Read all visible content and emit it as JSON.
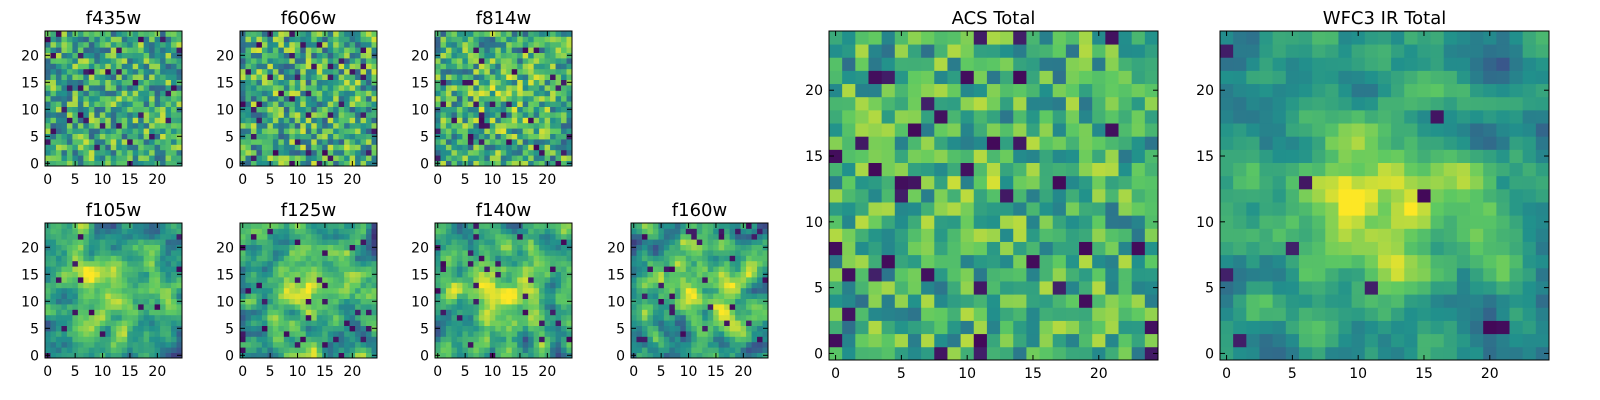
{
  "chart_data": [
    {
      "type": "heatmap",
      "title": "f435w",
      "xticks": [
        "0",
        "5",
        "10",
        "15",
        "20"
      ],
      "yticks": [
        "0",
        "5",
        "10",
        "15",
        "20"
      ],
      "xlim": [
        0,
        25
      ],
      "ylim": [
        0,
        25
      ],
      "grid": false,
      "colormap": "viridis",
      "source_panel": "f435w"
    },
    {
      "type": "heatmap",
      "title": "f606w",
      "xticks": [
        "0",
        "5",
        "10",
        "15",
        "20"
      ],
      "yticks": [
        "0",
        "5",
        "10",
        "15",
        "20"
      ],
      "xlim": [
        0,
        25
      ],
      "ylim": [
        0,
        25
      ],
      "grid": false,
      "colormap": "viridis",
      "source_panel": "f606w"
    },
    {
      "type": "heatmap",
      "title": "f814w",
      "xticks": [
        "0",
        "5",
        "10",
        "15",
        "20"
      ],
      "yticks": [
        "0",
        "5",
        "10",
        "15",
        "20"
      ],
      "xlim": [
        0,
        25
      ],
      "ylim": [
        0,
        25
      ],
      "grid": false,
      "colormap": "viridis",
      "source_panel": "f814w"
    },
    {
      "type": "heatmap",
      "title": "f105w",
      "xticks": [
        "0",
        "5",
        "10",
        "15",
        "20"
      ],
      "yticks": [
        "0",
        "5",
        "10",
        "15",
        "20"
      ],
      "xlim": [
        0,
        25
      ],
      "ylim": [
        0,
        25
      ],
      "grid": false,
      "colormap": "viridis",
      "source_panel": "f105w"
    },
    {
      "type": "heatmap",
      "title": "f125w",
      "xticks": [
        "0",
        "5",
        "10",
        "15",
        "20"
      ],
      "yticks": [
        "0",
        "5",
        "10",
        "15",
        "20"
      ],
      "xlim": [
        0,
        25
      ],
      "ylim": [
        0,
        25
      ],
      "grid": false,
      "colormap": "viridis",
      "source_panel": "f125w"
    },
    {
      "type": "heatmap",
      "title": "f140w",
      "xticks": [
        "0",
        "5",
        "10",
        "15",
        "20"
      ],
      "yticks": [
        "0",
        "5",
        "10",
        "15",
        "20"
      ],
      "xlim": [
        0,
        25
      ],
      "ylim": [
        0,
        25
      ],
      "grid": false,
      "colormap": "viridis",
      "source_panel": "f140w"
    },
    {
      "type": "heatmap",
      "title": "f160w",
      "xticks": [
        "0",
        "5",
        "10",
        "15",
        "20"
      ],
      "yticks": [
        "0",
        "5",
        "10",
        "15",
        "20"
      ],
      "xlim": [
        0,
        25
      ],
      "ylim": [
        0,
        25
      ],
      "grid": false,
      "colormap": "viridis",
      "source_panel": "f160w"
    },
    {
      "type": "heatmap",
      "title": "ACS Total",
      "xticks": [
        "0",
        "5",
        "10",
        "15",
        "20"
      ],
      "yticks": [
        "0",
        "5",
        "10",
        "15",
        "20"
      ],
      "xlim": [
        0,
        25
      ],
      "ylim": [
        0,
        25
      ],
      "grid": false,
      "colormap": "viridis",
      "source_panel": "ACS Total"
    },
    {
      "type": "heatmap",
      "title": "WFC3 IR Total",
      "xticks": [
        "0",
        "5",
        "10",
        "15",
        "20"
      ],
      "yticks": [
        "0",
        "5",
        "10",
        "15",
        "20"
      ],
      "xlim": [
        0,
        25
      ],
      "ylim": [
        0,
        25
      ],
      "grid": false,
      "colormap": "viridis",
      "source_panel": "WFC3 IR Total"
    }
  ],
  "colors": {
    "viridis": [
      "#440154",
      "#3b528b",
      "#21918c",
      "#5ec962",
      "#fde725"
    ],
    "axis": "#000000",
    "background": "#ffffff"
  }
}
